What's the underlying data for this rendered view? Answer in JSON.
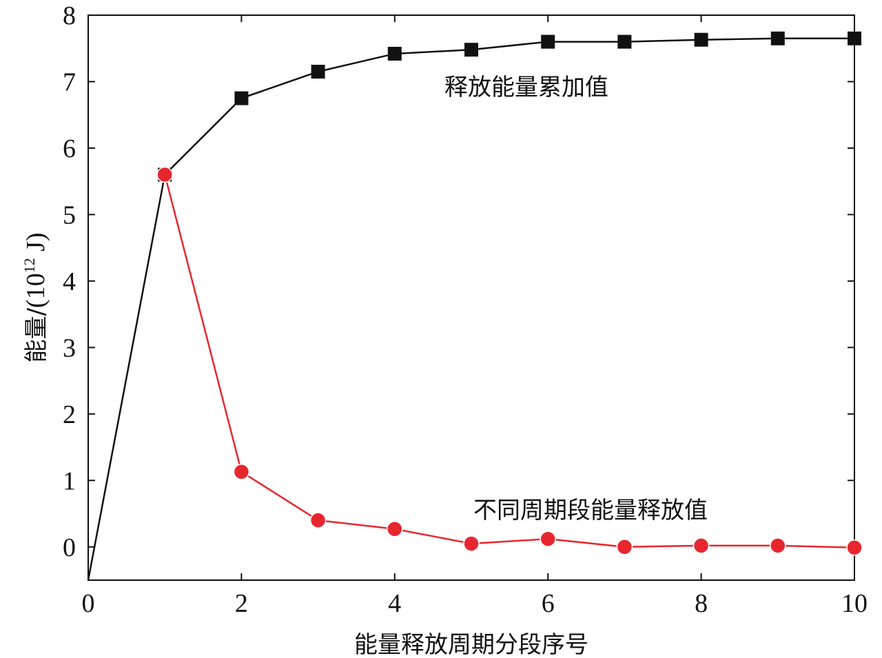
{
  "chart_data": {
    "type": "line",
    "title": "",
    "xlabel": "能量释放周期分段序号",
    "ylabel": "能量/",
    "ylabel_unit": {
      "open": "(",
      "base": "10",
      "exp": "12",
      "rest": " J)"
    },
    "xlim": [
      0,
      10
    ],
    "ylim": [
      -0.5,
      8
    ],
    "xticks": [
      0,
      2,
      4,
      6,
      8,
      10
    ],
    "yticks": [
      0,
      1,
      2,
      3,
      4,
      5,
      6,
      7,
      8
    ],
    "grid": false,
    "legend": "none",
    "series": [
      {
        "name": "释放能量累加值",
        "color": "#111111",
        "marker": "square",
        "x": [
          0,
          1,
          2,
          3,
          4,
          5,
          6,
          7,
          8,
          9,
          10
        ],
        "values": [
          -0.5,
          5.6,
          6.75,
          7.15,
          7.42,
          7.48,
          7.6,
          7.6,
          7.63,
          7.65,
          7.65
        ],
        "marker_from_index": 1
      },
      {
        "name": "不同周期段能量释放值",
        "color": "#e8262e",
        "marker": "circle",
        "x": [
          1,
          2,
          3,
          4,
          5,
          6,
          7,
          8,
          9,
          10
        ],
        "values": [
          5.6,
          1.13,
          0.4,
          0.27,
          0.05,
          0.12,
          0.0,
          0.02,
          0.02,
          -0.01
        ],
        "marker_from_index": 0
      }
    ],
    "annotations": [
      {
        "text": "释放能量累加值",
        "series": 0
      },
      {
        "text": "不同周期段能量释放值",
        "series": 1
      }
    ]
  }
}
